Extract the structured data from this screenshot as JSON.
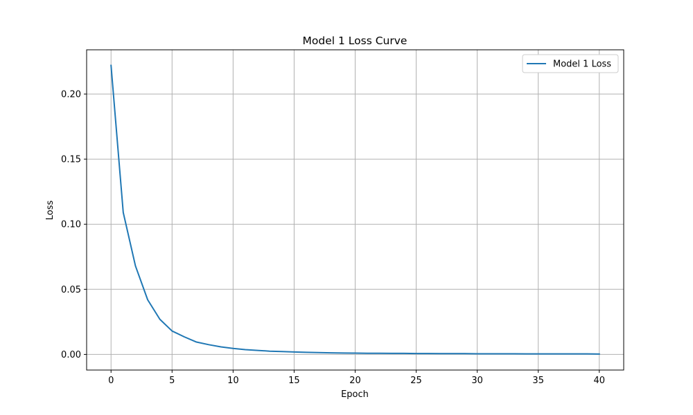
{
  "chart_data": {
    "type": "line",
    "title": "Model 1 Loss Curve",
    "xlabel": "Epoch",
    "ylabel": "Loss",
    "xlim": [
      -2,
      42
    ],
    "ylim": [
      -0.012,
      0.234
    ],
    "xticks": [
      0,
      5,
      10,
      15,
      20,
      25,
      30,
      35,
      40
    ],
    "yticks": [
      0.0,
      0.05,
      0.1,
      0.15,
      0.2
    ],
    "ytick_labels": [
      "0.00",
      "0.05",
      "0.10",
      "0.15",
      "0.20"
    ],
    "grid": true,
    "legend_position": "top-right",
    "series": [
      {
        "name": "Model 1 Loss",
        "color": "#1f77b4",
        "x": [
          0,
          1,
          2,
          3,
          4,
          5,
          6,
          7,
          8,
          9,
          10,
          11,
          12,
          13,
          14,
          15,
          16,
          17,
          18,
          19,
          20,
          21,
          22,
          23,
          24,
          25,
          26,
          27,
          28,
          29,
          30,
          31,
          32,
          33,
          34,
          35,
          36,
          37,
          38,
          39,
          40
        ],
        "y": [
          0.222,
          0.109,
          0.068,
          0.042,
          0.027,
          0.018,
          0.0135,
          0.0095,
          0.0075,
          0.0058,
          0.0046,
          0.0037,
          0.0031,
          0.0025,
          0.0022,
          0.0019,
          0.0016,
          0.0014,
          0.0012,
          0.0011,
          0.001,
          0.0009,
          0.0009,
          0.0008,
          0.0008,
          0.0007,
          0.0007,
          0.0006,
          0.0006,
          0.0006,
          0.0005,
          0.0005,
          0.0005,
          0.0005,
          0.0004,
          0.0004,
          0.0004,
          0.0004,
          0.0004,
          0.0004,
          0.0003
        ]
      }
    ]
  }
}
